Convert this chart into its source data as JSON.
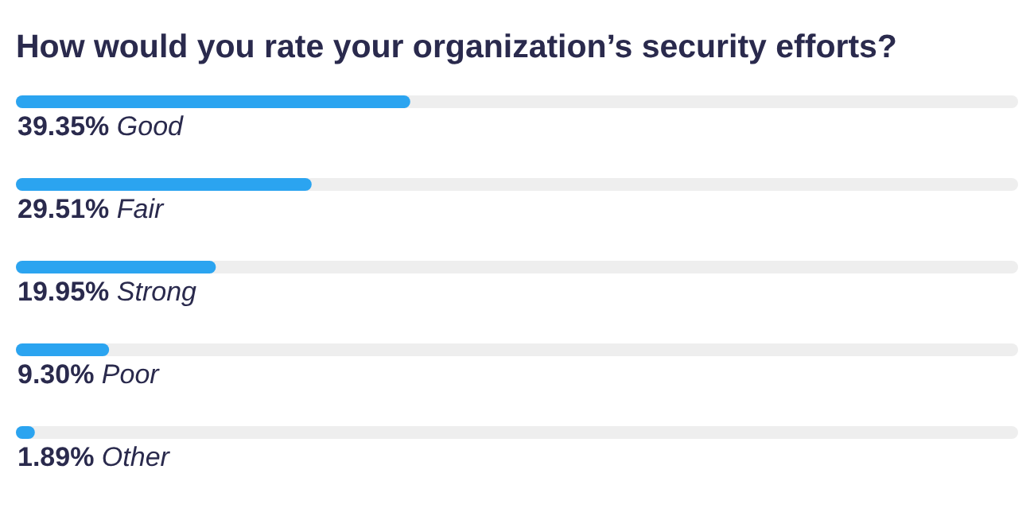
{
  "chart_data": {
    "type": "bar",
    "orientation": "horizontal",
    "title": "How would you rate your organization’s security efforts?",
    "categories": [
      "Good",
      "Fair",
      "Strong",
      "Poor",
      "Other"
    ],
    "values": [
      39.35,
      29.51,
      19.95,
      9.3,
      1.89
    ],
    "value_labels": [
      "39.35%",
      "29.51%",
      "19.95%",
      "9.30%",
      "1.89%"
    ],
    "color": "#2ba4f0"
  }
}
